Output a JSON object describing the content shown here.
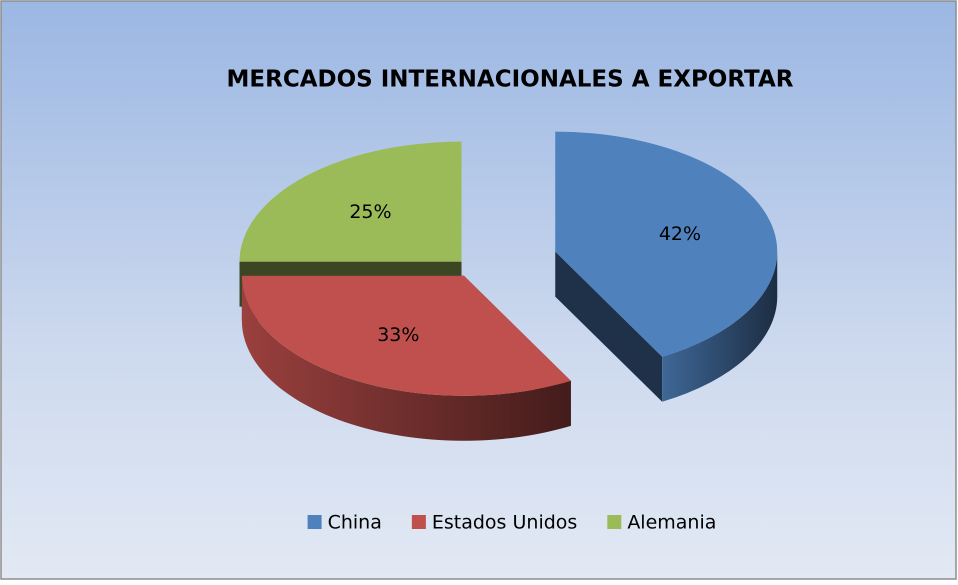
{
  "chart_data": {
    "type": "pie",
    "title": "MERCADOS INTERNACIONALES A EXPORTAR",
    "categories": [
      "China",
      "Estados Unidos",
      "Alemania"
    ],
    "values": [
      42,
      33,
      25
    ],
    "value_labels": [
      "42%",
      "33%",
      "25%"
    ],
    "colors": [
      "#4f81bd",
      "#c0504d",
      "#9bbb59"
    ],
    "legend": "bottom"
  }
}
